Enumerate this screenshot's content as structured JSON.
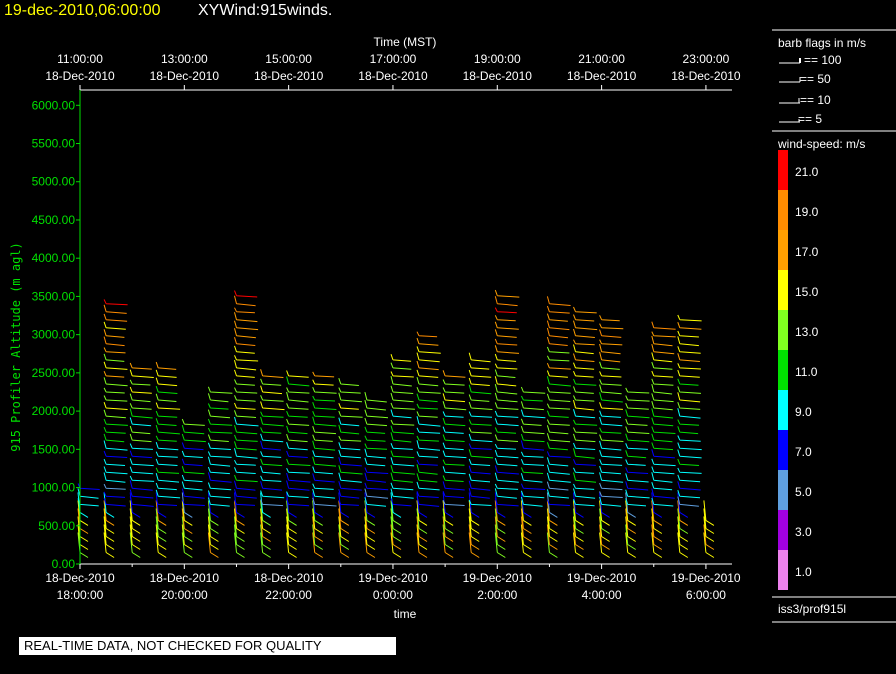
{
  "header": {
    "title": "19-dec-2010,06:00:00",
    "subtitle": "XYWind:915winds."
  },
  "qc_banner": "REAL-TIME DATA, NOT CHECKED FOR QUALITY",
  "station": "iss3/prof915l",
  "legend": {
    "barb_title": "barb flags in m/s",
    "barbs": [
      {
        "label": "== 100",
        "value": 100
      },
      {
        "label": "== 50",
        "value": 50
      },
      {
        "label": "== 10",
        "value": 10
      },
      {
        "label": "== 5",
        "value": 5
      }
    ],
    "speed_title": "wind-speed: m/s",
    "speed_bins": [
      {
        "label": "21.0",
        "color": "#ff0000"
      },
      {
        "label": "19.0",
        "color": "#ff8c00"
      },
      {
        "label": "17.0",
        "color": "#ff9f00"
      },
      {
        "label": "15.0",
        "color": "#ffff00"
      },
      {
        "label": "13.0",
        "color": "#80ff20"
      },
      {
        "label": "11.0",
        "color": "#00e000"
      },
      {
        "label": "9.0",
        "color": "#00ffff"
      },
      {
        "label": "7.0",
        "color": "#0000ff"
      },
      {
        "label": "5.0",
        "color": "#5f9fdf"
      },
      {
        "label": "3.0",
        "color": "#a000e0"
      },
      {
        "label": "1.0",
        "color": "#ee82ee"
      }
    ]
  },
  "chart_data": {
    "type": "scatter",
    "title": "19-dec-2010,06:00:00",
    "xlabel": "time",
    "x2label": "Time (MST)",
    "ylabel": "915 Profiler Altitude (m agl)",
    "ylim": [
      0,
      6200
    ],
    "yticks": [
      "0.00",
      "500.00",
      "1000.00",
      "1500.00",
      "2000.00",
      "2500.00",
      "3000.00",
      "3500.00",
      "4000.00",
      "4500.00",
      "5000.00",
      "5500.00",
      "6000.00"
    ],
    "xrange_hours_utc": [
      "18-Dec-2010 18:00:00",
      "19-Dec-2010 6:30:00"
    ],
    "bottom_ticks": [
      {
        "l1": "18-Dec-2010",
        "l2": "18:00:00"
      },
      {
        "l1": "18-Dec-2010",
        "l2": "20:00:00"
      },
      {
        "l1": "18-Dec-2010",
        "l2": "22:00:00"
      },
      {
        "l1": "19-Dec-2010",
        "l2": "0:00:00"
      },
      {
        "l1": "19-Dec-2010",
        "l2": "2:00:00"
      },
      {
        "l1": "19-Dec-2010",
        "l2": "4:00:00"
      },
      {
        "l1": "19-Dec-2010",
        "l2": "6:00:00"
      }
    ],
    "top_ticks": [
      {
        "l1": "11:00:00",
        "l2": "18-Dec-2010"
      },
      {
        "l1": "13:00:00",
        "l2": "18-Dec-2010"
      },
      {
        "l1": "15:00:00",
        "l2": "18-Dec-2010"
      },
      {
        "l1": "17:00:00",
        "l2": "18-Dec-2010"
      },
      {
        "l1": "19:00:00",
        "l2": "18-Dec-2010"
      },
      {
        "l1": "21:00:00",
        "l2": "18-Dec-2010"
      },
      {
        "l1": "23:00:00",
        "l2": "18-Dec-2010"
      }
    ],
    "profile_times_h": [
      0.0,
      0.5,
      1.0,
      1.5,
      2.0,
      2.5,
      3.0,
      3.5,
      4.0,
      4.5,
      5.0,
      5.5,
      6.0,
      6.5,
      7.0,
      7.5,
      8.0,
      8.5,
      9.0,
      9.5,
      10.0,
      10.5,
      11.0,
      11.5,
      12.0
    ],
    "profile_tops_m": [
      1000,
      3500,
      2650,
      2600,
      1900,
      2250,
      3550,
      2500,
      2500,
      2500,
      2450,
      2200,
      2750,
      3000,
      2500,
      2700,
      3550,
      2350,
      3450,
      3350,
      3250,
      2300,
      3150,
      3250,
      600
    ],
    "speed_colors": [
      "#ee82ee",
      "#a000e0",
      "#5f9fdf",
      "#0000ff",
      "#00ffff",
      "#00e000",
      "#80ff20",
      "#ffff00",
      "#ff9f00",
      "#ff8c00",
      "#ff0000"
    ]
  }
}
